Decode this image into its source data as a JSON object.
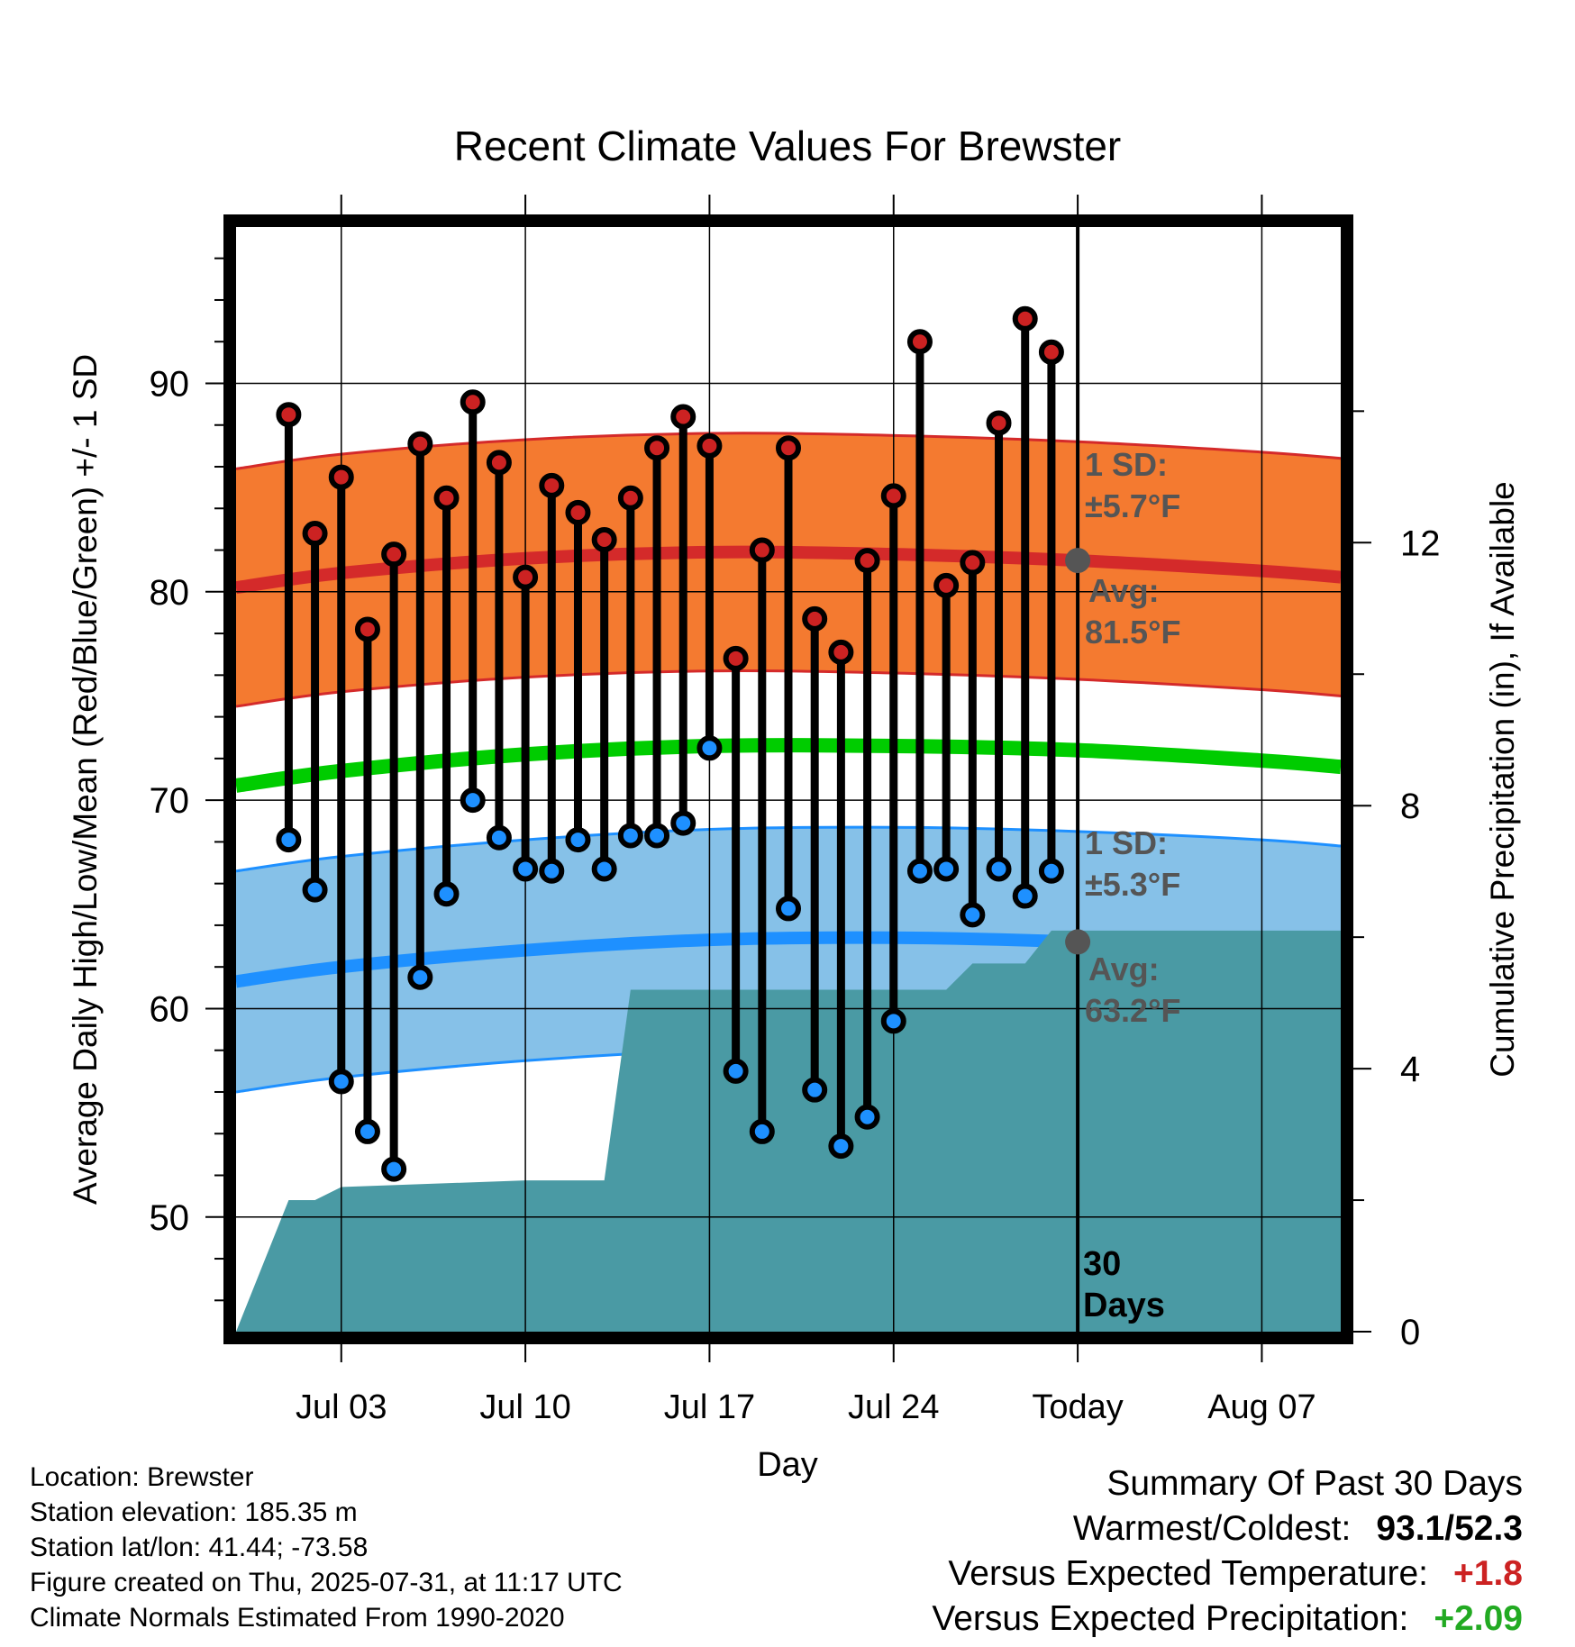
{
  "chart_data": {
    "type": "line",
    "title": "Recent Climate Values For Brewster",
    "xlabel": "Day",
    "ylabel": "Average Daily High/Low/Mean (Red/Blue/Green) +/- 1 SD",
    "y2label": "Cumulative Precipitation (in), If Available",
    "xlim": [
      "2025-06-29",
      "2025-08-10"
    ],
    "ylim": [
      44.5,
      97.5
    ],
    "y2lim": [
      0,
      16.8
    ],
    "x_ticks": [
      "2025-07-03",
      "2025-07-10",
      "2025-07-17",
      "2025-07-24",
      "2025-07-31",
      "2025-08-07"
    ],
    "x_tick_labels": [
      "Jul 03",
      "Jul 10",
      "Jul 17",
      "Jul 24",
      "Today",
      "Aug 07"
    ],
    "y_ticks": [
      50,
      60,
      70,
      80,
      90
    ],
    "y2_ticks": [
      0,
      4,
      8,
      12
    ],
    "grid": true,
    "today": "2025-07-31",
    "period_label": "30 Days",
    "dates": [
      "2025-07-01",
      "2025-07-02",
      "2025-07-03",
      "2025-07-04",
      "2025-07-05",
      "2025-07-06",
      "2025-07-07",
      "2025-07-08",
      "2025-07-09",
      "2025-07-10",
      "2025-07-11",
      "2025-07-12",
      "2025-07-13",
      "2025-07-14",
      "2025-07-15",
      "2025-07-16",
      "2025-07-17",
      "2025-07-18",
      "2025-07-19",
      "2025-07-20",
      "2025-07-21",
      "2025-07-22",
      "2025-07-23",
      "2025-07-24",
      "2025-07-25",
      "2025-07-26",
      "2025-07-27",
      "2025-07-28",
      "2025-07-29",
      "2025-07-30"
    ],
    "series": [
      {
        "name": "High",
        "color": "#cc2222",
        "values": [
          88.5,
          82.8,
          85.5,
          78.2,
          81.8,
          87.1,
          84.5,
          89.1,
          86.2,
          80.7,
          85.1,
          83.8,
          82.5,
          84.5,
          86.9,
          88.4,
          87.0,
          76.8,
          82.0,
          86.9,
          78.7,
          77.1,
          81.5,
          84.6,
          92.0,
          80.3,
          81.4,
          88.1,
          93.1,
          91.5
        ]
      },
      {
        "name": "Low",
        "color": "#1e90ff",
        "values": [
          68.1,
          65.7,
          56.5,
          54.1,
          52.3,
          61.5,
          65.5,
          70.0,
          68.2,
          66.7,
          66.6,
          68.1,
          66.7,
          68.3,
          68.3,
          68.9,
          72.5,
          57.0,
          54.1,
          64.8,
          56.1,
          53.4,
          54.8,
          59.4,
          66.6,
          66.7,
          64.5,
          66.7,
          65.4,
          66.6
        ]
      }
    ],
    "normals": {
      "dates": [
        "2025-06-29",
        "2025-07-03",
        "2025-07-10",
        "2025-07-17",
        "2025-07-24",
        "2025-07-31",
        "2025-08-07",
        "2025-08-10"
      ],
      "high_avg": [
        80.2,
        80.9,
        81.6,
        81.9,
        81.8,
        81.5,
        81.0,
        80.7
      ],
      "low_avg": [
        61.3,
        62.0,
        62.8,
        63.3,
        63.4,
        63.2,
        62.8,
        62.5
      ],
      "mean_avg": [
        70.7,
        71.4,
        72.2,
        72.6,
        72.6,
        72.4,
        71.9,
        71.6
      ],
      "high_sd": 5.7,
      "low_sd": 5.3,
      "mean_color": "#00cc00",
      "high_band_color": "#f47a30",
      "low_band_color": "#86c1e8"
    },
    "precipitation": {
      "color": "#4a9aa4",
      "dates": [
        "2025-06-29",
        "2025-07-01",
        "2025-07-02",
        "2025-07-03",
        "2025-07-10",
        "2025-07-13",
        "2025-07-14",
        "2025-07-20",
        "2025-07-26",
        "2025-07-27",
        "2025-07-28",
        "2025-07-29",
        "2025-07-30",
        "2025-08-10"
      ],
      "values": [
        0.0,
        2.0,
        2.0,
        2.2,
        2.3,
        2.3,
        5.2,
        5.2,
        5.2,
        5.6,
        5.6,
        5.6,
        6.1,
        6.1
      ]
    },
    "annotations": {
      "high": {
        "sd_title": "1 SD:",
        "sd_value": "±5.7°F",
        "avg_title": "Avg:",
        "avg_value": "81.5°F",
        "avg": 81.5
      },
      "low": {
        "sd_title": "1 SD:",
        "sd_value": "±5.3°F",
        "avg_title": "Avg:",
        "avg_value": "63.2°F",
        "avg": 63.2
      }
    }
  },
  "info": {
    "location": "Location: Brewster",
    "elevation": "Station elevation: 185.35 m",
    "latlon": "Station lat/lon: 41.44; -73.58",
    "created": "Figure created on Thu, 2025-07-31, at 11:17 UTC",
    "normals": "Climate Normals Estimated From 1990-2020"
  },
  "summary": {
    "title": "Summary Of Past 30 Days",
    "warm_cold_label": "Warmest/Coldest:",
    "warm_cold_value": "93.1/52.3",
    "temp_label": "Versus Expected Temperature:",
    "temp_value": "+1.8",
    "temp_color": "#cc2222",
    "precip_label": "Versus Expected Precipitation:",
    "precip_value": "+2.09",
    "precip_color": "#22aa22"
  }
}
